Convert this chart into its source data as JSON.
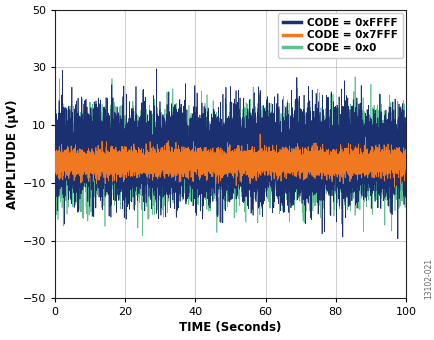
{
  "title": "",
  "xlabel": "TIME (Seconds)",
  "ylabel": "AMPLITUDE (μV)",
  "xlim": [
    0,
    100
  ],
  "ylim": [
    -50,
    50
  ],
  "xticks": [
    0,
    20,
    40,
    60,
    80,
    100
  ],
  "yticks": [
    -50,
    -30,
    -10,
    10,
    30,
    50
  ],
  "series": [
    {
      "label": "CODE = 0xFFFF",
      "color": "#1a3070",
      "mean": 0.0,
      "std": 7.5,
      "linewidth": 0.5,
      "zorder": 3
    },
    {
      "label": "CODE = 0x7FFF",
      "color": "#f07820",
      "mean": -3.0,
      "std": 2.2,
      "linewidth": 0.6,
      "zorder": 4
    },
    {
      "label": "CODE = 0x0",
      "color": "#60c090",
      "mean": -1.0,
      "std": 7.5,
      "linewidth": 0.5,
      "zorder": 2
    }
  ],
  "n_points": 10000,
  "legend_fontsize": 7.5,
  "axis_label_fontsize": 8.5,
  "tick_fontsize": 8,
  "watermark": "13102-021",
  "background_color": "#ffffff",
  "plot_bg_color": "#ffffff",
  "grid_color": "#aaaaaa",
  "grid_linewidth": 0.5
}
